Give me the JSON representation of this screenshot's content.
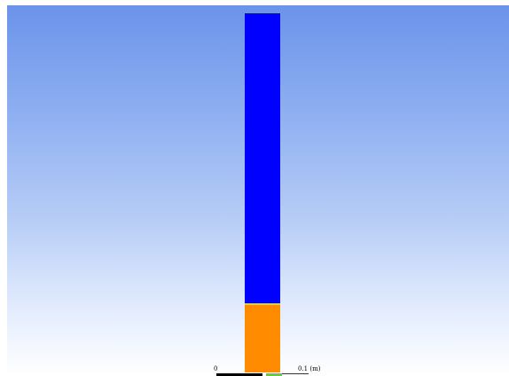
{
  "scene": {
    "background_top_color": "#6b93ea",
    "background_bottom_color": "#ffffff",
    "phase_upper_color": "#0000ff",
    "phase_lower_color": "#ff8c00",
    "interface_color": "#d8d050",
    "lower_phase_fraction": 0.19
  },
  "scale_bar": {
    "min_label": "0",
    "max_label": "0.1 (m)",
    "segment_colors": [
      "#000000",
      "#66cc33"
    ]
  }
}
